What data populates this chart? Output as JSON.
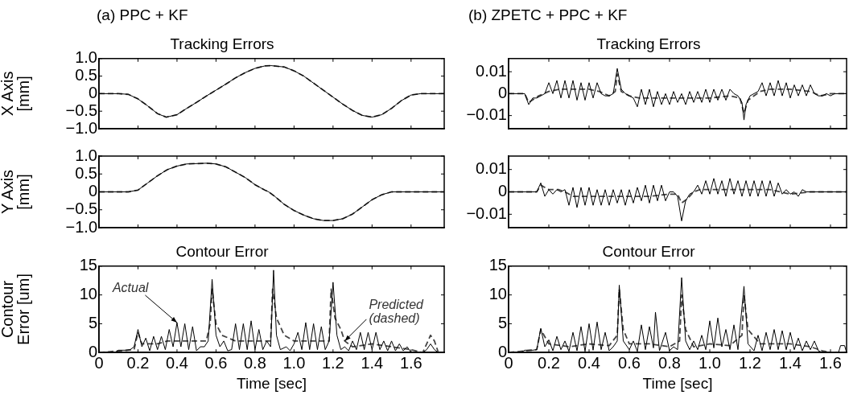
{
  "chart_data": [
    {
      "type": "line",
      "title": "Tracking Errors",
      "ylabel": "X Axis\n[mm]",
      "annotations": [
        "(a) PPC + KF"
      ],
      "xlim": [
        0,
        1.77
      ],
      "xticks": [
        0,
        0.2,
        0.4,
        0.6,
        0.8,
        1,
        1.2,
        1.4,
        1.6
      ],
      "ylim": [
        -1,
        1
      ],
      "yticks": [
        {
          "value": -1,
          "label": "−1.0"
        },
        {
          "value": -0.5,
          "label": "−0.5"
        },
        0,
        0.5,
        {
          "value": 1,
          "label": "1.0"
        }
      ],
      "tick_labels": "y",
      "marker": "none",
      "series": [
        {
          "color": "#000000",
          "line_style": "solid",
          "x": [
            0,
            0.1,
            0.15,
            0.2,
            0.25,
            0.3,
            0.345,
            0.4,
            0.45,
            0.5,
            0.55,
            0.6,
            0.65,
            0.7,
            0.75,
            0.8,
            0.85,
            0.88,
            0.95,
            1.0,
            1.05,
            1.1,
            1.15,
            1.2,
            1.25,
            1.3,
            1.35,
            1.4,
            1.45,
            1.5,
            1.55,
            1.6,
            1.65,
            1.77
          ],
          "values": [
            0,
            0,
            -0.02,
            -0.15,
            -0.35,
            -0.57,
            -0.67,
            -0.6,
            -0.42,
            -0.25,
            -0.07,
            0.1,
            0.27,
            0.45,
            0.6,
            0.72,
            0.79,
            0.8,
            0.76,
            0.65,
            0.5,
            0.3,
            0.1,
            -0.1,
            -0.3,
            -0.48,
            -0.62,
            -0.67,
            -0.6,
            -0.42,
            -0.2,
            -0.04,
            0,
            0
          ]
        },
        {
          "color": "#444444",
          "line_style": "dashed",
          "x": [
            0,
            0.1,
            0.15,
            0.2,
            0.25,
            0.3,
            0.345,
            0.4,
            0.45,
            0.5,
            0.55,
            0.6,
            0.65,
            0.7,
            0.75,
            0.8,
            0.85,
            0.88,
            0.95,
            1.0,
            1.05,
            1.1,
            1.15,
            1.2,
            1.25,
            1.3,
            1.35,
            1.4,
            1.45,
            1.5,
            1.55,
            1.6,
            1.65,
            1.77
          ],
          "values": [
            0,
            0,
            -0.02,
            -0.15,
            -0.35,
            -0.57,
            -0.67,
            -0.6,
            -0.42,
            -0.25,
            -0.07,
            0.1,
            0.27,
            0.45,
            0.6,
            0.72,
            0.79,
            0.8,
            0.76,
            0.65,
            0.5,
            0.3,
            0.1,
            -0.1,
            -0.3,
            -0.48,
            -0.62,
            -0.67,
            -0.6,
            -0.42,
            -0.2,
            -0.04,
            0,
            0
          ]
        }
      ]
    },
    {
      "type": "line",
      "title": "Tracking Errors",
      "annotations": [
        "(b) ZPETC + PPC + KF"
      ],
      "xlim": [
        0,
        1.68
      ],
      "xticks": [
        0,
        0.2,
        0.4,
        0.6,
        0.8,
        1,
        1.2,
        1.4,
        1.6
      ],
      "ylim": [
        -0.016,
        0.016
      ],
      "yticks": [
        {
          "value": -0.01,
          "label": "−0.01"
        },
        0,
        0.01
      ],
      "tick_labels": "y",
      "marker": "none",
      "series": [
        {
          "color": "#000000",
          "line_style": "solid",
          "x": [
            0,
            0.02,
            0.04,
            0.06,
            0.08,
            0.1,
            0.12,
            0.14,
            0.16,
            0.18,
            0.2,
            0.22,
            0.24,
            0.26,
            0.28,
            0.3,
            0.32,
            0.34,
            0.36,
            0.38,
            0.4,
            0.42,
            0.44,
            0.46,
            0.48,
            0.5,
            0.52,
            0.54,
            0.56,
            0.58,
            0.6,
            0.62,
            0.64,
            0.66,
            0.68,
            0.7,
            0.72,
            0.74,
            0.76,
            0.78,
            0.8,
            0.82,
            0.84,
            0.86,
            0.88,
            0.9,
            0.92,
            0.94,
            0.96,
            0.98,
            1.0,
            1.02,
            1.04,
            1.06,
            1.08,
            1.1,
            1.12,
            1.14,
            1.16,
            1.17,
            1.18,
            1.2,
            1.22,
            1.24,
            1.26,
            1.28,
            1.3,
            1.32,
            1.34,
            1.36,
            1.38,
            1.4,
            1.42,
            1.44,
            1.46,
            1.48,
            1.5,
            1.52,
            1.54,
            1.56,
            1.58,
            1.6,
            1.62,
            1.64,
            1.66,
            1.68
          ],
          "values": [
            0,
            0,
            0,
            0,
            0,
            -0.005,
            -0.002,
            -0.002,
            -0.001,
            0,
            0.005,
            0,
            0.006,
            -0.002,
            0.006,
            -0.002,
            0.006,
            -0.003,
            0.005,
            -0.003,
            0.005,
            -0.002,
            0.005,
            0,
            -0.001,
            -0.001,
            0,
            0.0115,
            0.002,
            0,
            -0.001,
            -0.002,
            -0.006,
            0.002,
            -0.005,
            0.002,
            -0.006,
            0.001,
            -0.005,
            0,
            -0.005,
            0.001,
            -0.004,
            0,
            -0.005,
            0.001,
            -0.004,
            0.001,
            -0.004,
            0.002,
            -0.004,
            0.002,
            -0.003,
            0.002,
            -0.003,
            0.002,
            0,
            -0.001,
            -0.004,
            -0.012,
            -0.005,
            -0.001,
            0,
            0.001,
            0.005,
            -0.001,
            0.005,
            -0.001,
            0.006,
            -0.001,
            0.005,
            -0.002,
            0.004,
            -0.001,
            0.004,
            -0.001,
            0.004,
            0,
            -0.001,
            -0.001,
            0,
            -0.001,
            0,
            0,
            0,
            0
          ]
        },
        {
          "color": "#444444",
          "line_style": "dashed",
          "x": [
            0,
            0.08,
            0.1,
            0.15,
            0.2,
            0.25,
            0.3,
            0.35,
            0.4,
            0.45,
            0.5,
            0.53,
            0.54,
            0.56,
            0.6,
            0.65,
            0.7,
            0.8,
            0.9,
            1.0,
            1.1,
            1.15,
            1.17,
            1.19,
            1.25,
            1.3,
            1.4,
            1.5,
            1.55,
            1.6,
            1.68
          ],
          "values": [
            0,
            0,
            -0.004,
            -0.001,
            0.001,
            0.002,
            0.002,
            0.002,
            0.002,
            0.001,
            -0.001,
            0.001,
            0.009,
            0.001,
            -0.001,
            -0.002,
            -0.002,
            -0.002,
            -0.002,
            -0.002,
            -0.001,
            -0.002,
            -0.009,
            -0.003,
            0.001,
            0.002,
            0.002,
            0.001,
            -0.001,
            0,
            0
          ]
        }
      ]
    },
    {
      "type": "line",
      "ylabel": "Y Axis\n[mm]",
      "xlim": [
        0,
        1.77
      ],
      "xticks": [
        0,
        0.2,
        0.4,
        0.6,
        0.8,
        1,
        1.2,
        1.4,
        1.6
      ],
      "ylim": [
        -1,
        1
      ],
      "yticks": [
        {
          "value": -1,
          "label": "−1.0"
        },
        {
          "value": -0.5,
          "label": "−0.5"
        },
        0,
        0.5,
        {
          "value": 1,
          "label": "1.0"
        }
      ],
      "tick_labels": "y",
      "marker": "none",
      "series": [
        {
          "color": "#000000",
          "line_style": "solid",
          "x": [
            0,
            0.15,
            0.2,
            0.25,
            0.3,
            0.35,
            0.4,
            0.45,
            0.55,
            0.6,
            0.65,
            0.7,
            0.75,
            0.8,
            0.85,
            0.87,
            0.9,
            0.95,
            1.0,
            1.05,
            1.1,
            1.15,
            1.2,
            1.25,
            1.3,
            1.35,
            1.4,
            1.45,
            1.5,
            1.77
          ],
          "values": [
            0,
            0,
            0.05,
            0.25,
            0.45,
            0.62,
            0.72,
            0.78,
            0.8,
            0.78,
            0.7,
            0.55,
            0.4,
            0.2,
            0.05,
            0,
            -0.12,
            -0.35,
            -0.52,
            -0.65,
            -0.75,
            -0.8,
            -0.8,
            -0.75,
            -0.62,
            -0.42,
            -0.22,
            -0.08,
            0,
            0
          ]
        },
        {
          "color": "#444444",
          "line_style": "dashed",
          "x": [
            0,
            0.15,
            0.2,
            0.25,
            0.3,
            0.35,
            0.4,
            0.45,
            0.55,
            0.6,
            0.65,
            0.7,
            0.75,
            0.8,
            0.85,
            0.87,
            0.9,
            0.95,
            1.0,
            1.05,
            1.1,
            1.15,
            1.2,
            1.25,
            1.3,
            1.35,
            1.4,
            1.45,
            1.5,
            1.77
          ],
          "values": [
            0,
            0,
            0.05,
            0.25,
            0.45,
            0.62,
            0.72,
            0.78,
            0.8,
            0.78,
            0.7,
            0.55,
            0.4,
            0.2,
            0.05,
            0,
            -0.12,
            -0.35,
            -0.52,
            -0.65,
            -0.75,
            -0.8,
            -0.8,
            -0.75,
            -0.62,
            -0.42,
            -0.22,
            -0.08,
            0,
            0
          ]
        }
      ]
    },
    {
      "type": "line",
      "xlim": [
        0,
        1.68
      ],
      "xticks": [
        0,
        0.2,
        0.4,
        0.6,
        0.8,
        1,
        1.2,
        1.4,
        1.6
      ],
      "ylim": [
        -0.016,
        0.016
      ],
      "yticks": [
        {
          "value": -0.01,
          "label": "−0.01"
        },
        0,
        0.01
      ],
      "tick_labels": "y",
      "marker": "none",
      "series": [
        {
          "color": "#000000",
          "line_style": "solid",
          "x": [
            0,
            0.04,
            0.08,
            0.12,
            0.14,
            0.16,
            0.18,
            0.2,
            0.22,
            0.24,
            0.26,
            0.28,
            0.3,
            0.32,
            0.34,
            0.36,
            0.38,
            0.4,
            0.42,
            0.44,
            0.46,
            0.48,
            0.5,
            0.52,
            0.54,
            0.56,
            0.58,
            0.6,
            0.62,
            0.64,
            0.66,
            0.68,
            0.7,
            0.72,
            0.74,
            0.76,
            0.78,
            0.8,
            0.82,
            0.84,
            0.86,
            0.88,
            0.9,
            0.92,
            0.94,
            0.96,
            0.98,
            1.0,
            1.02,
            1.04,
            1.06,
            1.08,
            1.1,
            1.12,
            1.14,
            1.16,
            1.18,
            1.2,
            1.22,
            1.24,
            1.26,
            1.28,
            1.3,
            1.32,
            1.34,
            1.36,
            1.38,
            1.4,
            1.42,
            1.44,
            1.46,
            1.48,
            1.5,
            1.55,
            1.6,
            1.68
          ],
          "values": [
            0,
            0,
            0,
            0,
            0,
            0.004,
            -0.002,
            0.001,
            -0.001,
            0.001,
            0,
            0.001,
            -0.006,
            0.002,
            -0.007,
            0.002,
            -0.006,
            0.002,
            -0.006,
            0.001,
            -0.006,
            0.001,
            -0.006,
            0.001,
            -0.005,
            0.001,
            -0.006,
            0.001,
            -0.005,
            0.002,
            -0.004,
            0.003,
            -0.005,
            0.003,
            -0.004,
            0.003,
            -0.004,
            0,
            0,
            -0.002,
            -0.013,
            -0.004,
            -0.001,
            0,
            0.003,
            -0.001,
            0.005,
            -0.001,
            0.006,
            -0.001,
            0.005,
            -0.002,
            0.006,
            -0.001,
            0.005,
            -0.002,
            0.005,
            -0.002,
            0.005,
            -0.002,
            0.005,
            -0.002,
            0.005,
            -0.002,
            0.004,
            -0.001,
            0.001,
            -0.001,
            0,
            -0.002,
            0.001,
            0,
            0,
            0,
            0,
            0
          ]
        },
        {
          "color": "#444444",
          "line_style": "dashed",
          "x": [
            0,
            0.14,
            0.16,
            0.2,
            0.25,
            0.28,
            0.32,
            0.4,
            0.5,
            0.6,
            0.7,
            0.8,
            0.84,
            0.86,
            0.89,
            0.92,
            0.95,
            1.0,
            1.1,
            1.2,
            1.3,
            1.35,
            1.4,
            1.5,
            1.6,
            1.68
          ],
          "values": [
            0,
            0,
            0.003,
            0.001,
            0.001,
            0,
            -0.002,
            -0.002,
            -0.002,
            -0.002,
            -0.002,
            -0.001,
            -0.001,
            -0.005,
            -0.003,
            0,
            0.001,
            0.001,
            0.001,
            0.001,
            0.001,
            0,
            -0.001,
            0,
            0,
            0
          ]
        }
      ]
    },
    {
      "type": "line",
      "title": "Contour Error",
      "xlabel": "Time [sec]",
      "ylabel": "Contour\nError [um]",
      "annotations": [
        {
          "text": "Actual",
          "x": 0.4,
          "y": 5.2
        },
        {
          "text": "Predicted\n(dashed)",
          "x": 1.26,
          "y": 2
        }
      ],
      "xlim": [
        0,
        1.77
      ],
      "xticks": [
        0,
        0.2,
        0.4,
        0.6,
        0.8,
        {
          "value": 1,
          "label": "1.0"
        },
        1.2,
        1.4,
        1.6
      ],
      "ylim": [
        0,
        15
      ],
      "yticks": [
        0,
        5,
        10,
        15
      ],
      "marker": "none",
      "series": [
        {
          "color": "#000000",
          "line_style": "solid",
          "x": [
            0,
            0.08,
            0.1,
            0.14,
            0.16,
            0.18,
            0.2,
            0.22,
            0.24,
            0.26,
            0.28,
            0.3,
            0.32,
            0.34,
            0.36,
            0.38,
            0.4,
            0.42,
            0.44,
            0.46,
            0.48,
            0.5,
            0.52,
            0.54,
            0.56,
            0.58,
            0.6,
            0.62,
            0.64,
            0.66,
            0.68,
            0.7,
            0.72,
            0.74,
            0.76,
            0.78,
            0.8,
            0.82,
            0.84,
            0.86,
            0.88,
            0.895,
            0.91,
            0.93,
            0.96,
            0.98,
            1.0,
            1.02,
            1.04,
            1.06,
            1.08,
            1.1,
            1.12,
            1.14,
            1.16,
            1.18,
            1.2,
            1.22,
            1.24,
            1.26,
            1.28,
            1.3,
            1.32,
            1.34,
            1.36,
            1.38,
            1.4,
            1.42,
            1.44,
            1.46,
            1.48,
            1.5,
            1.52,
            1.54,
            1.56,
            1.58,
            1.6,
            1.66,
            1.68,
            1.7,
            1.72,
            1.74
          ],
          "values": [
            0,
            0,
            0.4,
            0.4,
            0.5,
            1,
            4,
            1,
            2.5,
            0.3,
            2.8,
            0.5,
            2.8,
            0.5,
            4,
            1,
            5.2,
            1,
            5,
            0.5,
            4.5,
            0.3,
            1,
            1,
            2,
            12.7,
            3,
            1,
            2,
            0.3,
            0.5,
            5,
            0.5,
            5,
            0.5,
            5.5,
            0.5,
            4,
            0.5,
            2,
            1,
            14.3,
            3,
            0.5,
            1,
            0.3,
            1.5,
            3.5,
            0.5,
            5.2,
            0.5,
            5,
            0.5,
            4.5,
            0.5,
            2,
            12.2,
            3,
            0.5,
            1,
            0.3,
            2,
            0.5,
            3.5,
            0.5,
            3.5,
            0.5,
            3.5,
            0.5,
            2,
            0.3,
            2,
            0.3,
            1.5,
            0.3,
            1,
            0,
            0,
            0.5,
            1.5,
            0.5,
            0
          ]
        },
        {
          "color": "#444444",
          "line_style": "dashed",
          "x": [
            0,
            0.18,
            0.2,
            0.22,
            0.3,
            0.35,
            0.45,
            0.55,
            0.57,
            0.58,
            0.6,
            0.63,
            0.7,
            0.8,
            0.88,
            0.89,
            0.91,
            0.95,
            1.0,
            1.1,
            1.18,
            1.19,
            1.21,
            1.24,
            1.26,
            1.3,
            1.4,
            1.5,
            1.6,
            1.66,
            1.7,
            1.72,
            1.74
          ],
          "values": [
            0,
            0.5,
            3.5,
            1.5,
            1.5,
            2,
            2,
            2,
            5,
            11,
            5,
            3,
            2,
            2,
            2,
            11,
            6,
            3,
            2,
            2,
            2,
            11,
            6,
            4,
            2,
            1,
            1.5,
            1,
            0.5,
            0,
            3,
            2,
            0
          ]
        }
      ]
    },
    {
      "type": "line",
      "title": "Contour Error",
      "xlabel": "Time [sec]",
      "xlim": [
        0,
        1.68
      ],
      "xticks": [
        0,
        0.2,
        0.4,
        0.6,
        0.8,
        {
          "value": 1,
          "label": "1.0"
        },
        1.2,
        1.4,
        1.6
      ],
      "ylim": [
        0,
        15
      ],
      "yticks": [
        0,
        5,
        10,
        15
      ],
      "marker": "none",
      "series": [
        {
          "color": "#000000",
          "line_style": "solid",
          "x": [
            0,
            0.06,
            0.08,
            0.12,
            0.14,
            0.16,
            0.18,
            0.2,
            0.22,
            0.24,
            0.26,
            0.28,
            0.3,
            0.32,
            0.34,
            0.36,
            0.38,
            0.4,
            0.42,
            0.44,
            0.46,
            0.48,
            0.5,
            0.52,
            0.54,
            0.55,
            0.57,
            0.6,
            0.62,
            0.64,
            0.66,
            0.68,
            0.7,
            0.72,
            0.73,
            0.75,
            0.78,
            0.8,
            0.82,
            0.84,
            0.86,
            0.88,
            0.9,
            0.92,
            0.94,
            0.96,
            0.98,
            1.0,
            1.02,
            1.04,
            1.06,
            1.08,
            1.1,
            1.12,
            1.14,
            1.17,
            1.19,
            1.22,
            1.24,
            1.26,
            1.28,
            1.3,
            1.32,
            1.34,
            1.36,
            1.38,
            1.4,
            1.42,
            1.44,
            1.46,
            1.48,
            1.5,
            1.52,
            1.54,
            1.56,
            1.64,
            1.65,
            1.67,
            1.68
          ],
          "values": [
            0,
            0,
            0.4,
            0.4,
            0.5,
            4.2,
            1,
            2.2,
            0.3,
            2.8,
            0.5,
            2,
            0.2,
            3.5,
            0.3,
            4.5,
            0.2,
            5,
            0.4,
            5.3,
            0.5,
            3.5,
            0.3,
            1,
            2,
            11.7,
            2,
            0.5,
            2,
            0.2,
            4.8,
            0.5,
            4.5,
            0.8,
            7,
            0.3,
            3.5,
            0.3,
            1,
            0.5,
            13,
            2,
            0.5,
            2,
            0.5,
            3,
            0.5,
            5.5,
            0.8,
            6,
            1,
            4,
            0.5,
            4.8,
            0.5,
            11.5,
            1.5,
            0.3,
            3,
            0.3,
            3.5,
            0.5,
            4,
            0.5,
            3.8,
            0.5,
            3.5,
            0.5,
            2.5,
            0.3,
            2,
            0.5,
            2,
            0.3,
            0,
            0,
            1.2,
            1.2,
            0
          ]
        },
        {
          "color": "#444444",
          "line_style": "dashed",
          "x": [
            0,
            0.14,
            0.16,
            0.2,
            0.3,
            0.4,
            0.5,
            0.54,
            0.55,
            0.57,
            0.6,
            0.7,
            0.8,
            0.85,
            0.86,
            0.88,
            0.92,
            1.0,
            1.1,
            1.16,
            1.17,
            1.19,
            1.25,
            1.4,
            1.5,
            1.56,
            1.6,
            1.68
          ],
          "values": [
            0,
            0.5,
            4,
            1.5,
            1,
            1.5,
            1.2,
            3,
            11,
            4,
            1.5,
            1.5,
            1,
            2,
            10,
            4,
            1,
            1.5,
            1.2,
            3,
            10,
            4,
            1.5,
            1.5,
            1,
            0.3,
            0,
            0
          ]
        }
      ]
    }
  ]
}
